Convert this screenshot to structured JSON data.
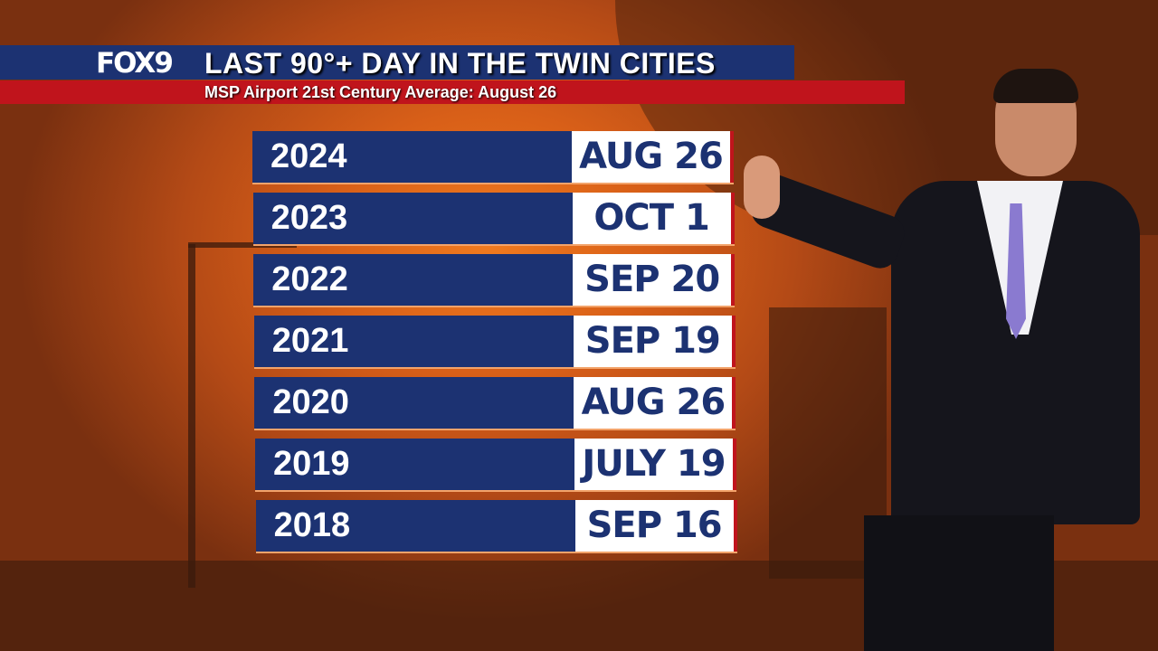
{
  "header": {
    "logo": "FOX9",
    "title": "LAST 90°+ DAY IN THE TWIN CITIES",
    "subtitle": "MSP Airport 21st Century Average:  August 26"
  },
  "rows": [
    {
      "year": "2024",
      "date": "AUG 26"
    },
    {
      "year": "2023",
      "date": "OCT 1"
    },
    {
      "year": "2022",
      "date": "SEP 20"
    },
    {
      "year": "2021",
      "date": "SEP 19"
    },
    {
      "year": "2020",
      "date": "AUG 26"
    },
    {
      "year": "2019",
      "date": "JULY 19"
    },
    {
      "year": "2018",
      "date": "SEP 16"
    }
  ],
  "colors": {
    "navy": "#1c3272",
    "red": "#c0141c",
    "background": "#d85f18"
  }
}
